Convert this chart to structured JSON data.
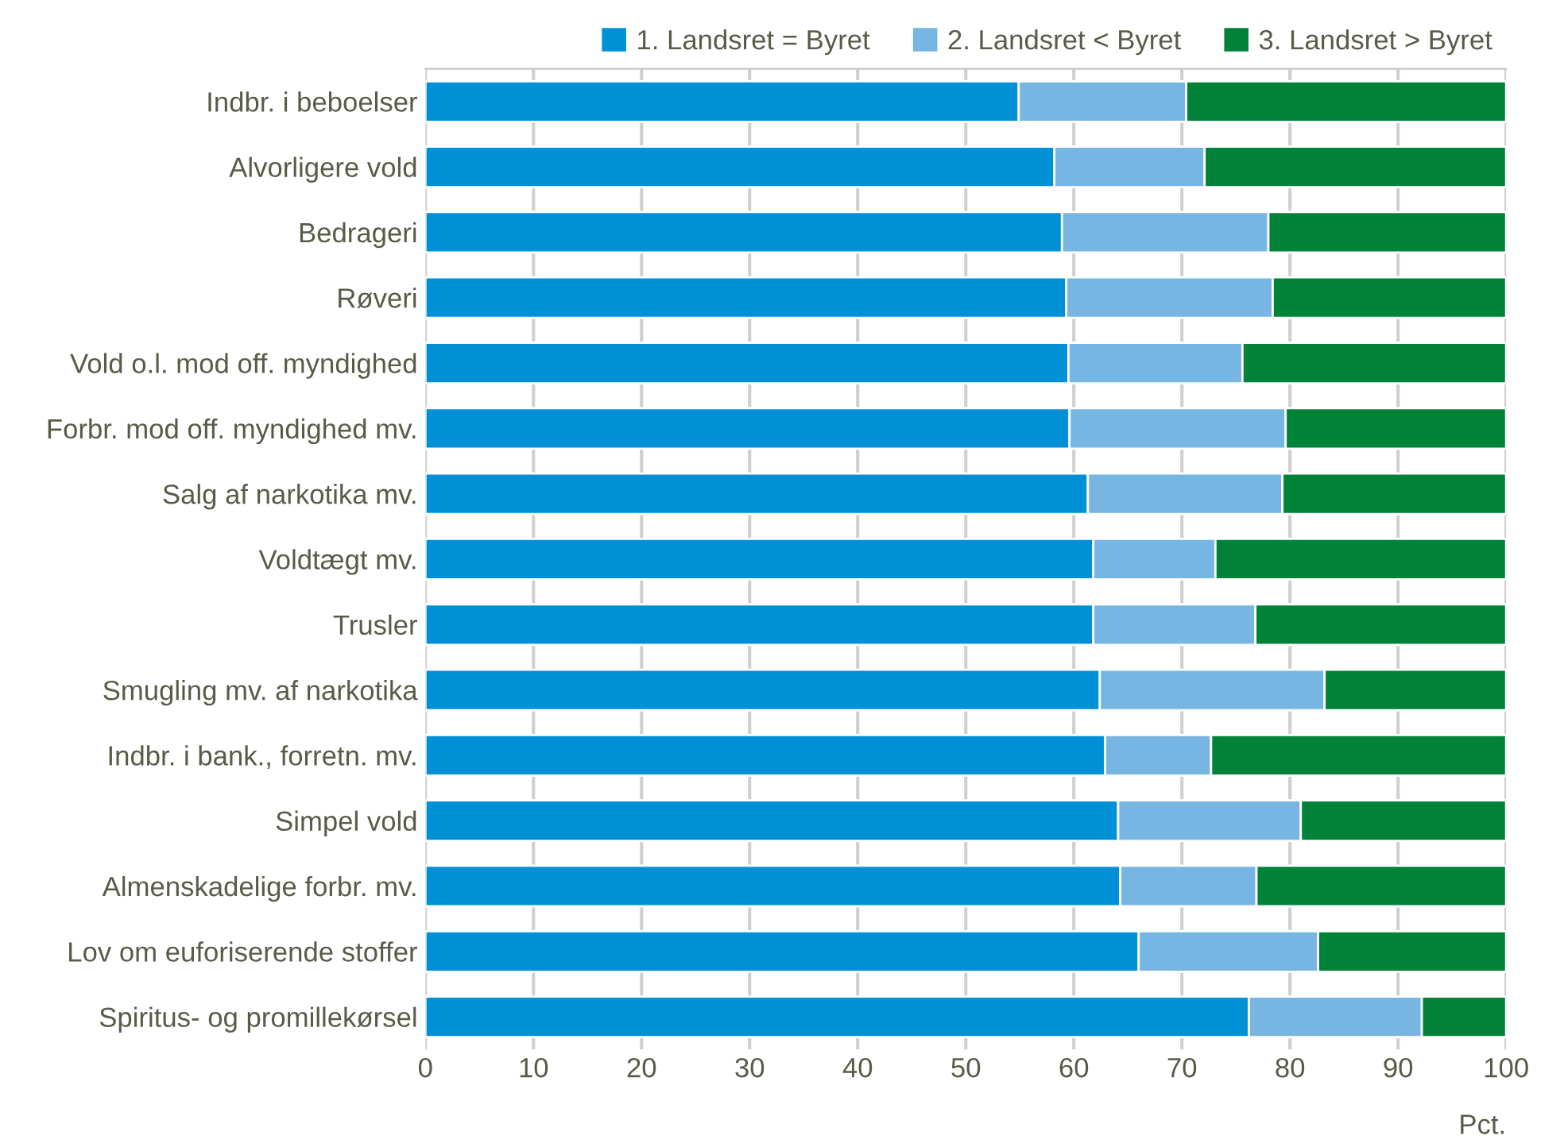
{
  "chart_data": {
    "type": "bar",
    "orientation": "horizontal",
    "stacked": true,
    "xlabel": "Pct.",
    "categories": [
      "Indbr. i beboelser",
      "Alvorligere vold",
      "Bedrageri",
      "Røveri",
      "Vold o.l. mod off. myndighed",
      "Forbr. mod off. myndighed mv.",
      "Salg af narkotika mv.",
      "Voldtægt mv.",
      "Trusler",
      "Smugling mv. af narkotika",
      "Indbr. i bank., forretn. mv.",
      "Simpel vold",
      "Almenskadelige forbr. mv.",
      "Lov om euforiserende stoffer",
      "Spiritus- og promillekørsel"
    ],
    "series": [
      {
        "name": "1. Landsret = Byret",
        "color": "#0090d6",
        "values": [
          54.9,
          58.2,
          58.9,
          59.3,
          59.5,
          59.6,
          61.3,
          61.8,
          61.8,
          62.4,
          62.9,
          64.1,
          64.3,
          66.0,
          76.2
        ]
      },
      {
        "name": "2. Landsret < Byret",
        "color": "#77b5e3",
        "values": [
          15.5,
          13.9,
          19.1,
          19.1,
          16.1,
          20.0,
          18.0,
          11.3,
          15.0,
          20.8,
          9.8,
          16.9,
          12.6,
          16.6,
          16.0
        ]
      },
      {
        "name": "3. Landsret > Byret",
        "color": "#008239",
        "values": [
          29.6,
          27.9,
          22.0,
          21.6,
          24.4,
          20.4,
          20.7,
          26.9,
          23.2,
          16.8,
          27.3,
          19.0,
          23.1,
          17.4,
          7.8
        ]
      }
    ],
    "xlim": [
      0,
      100
    ],
    "xticks": [
      0,
      10,
      20,
      30,
      40,
      50,
      60,
      70,
      80,
      90,
      100
    ],
    "grid": "x",
    "legend": "top right"
  }
}
